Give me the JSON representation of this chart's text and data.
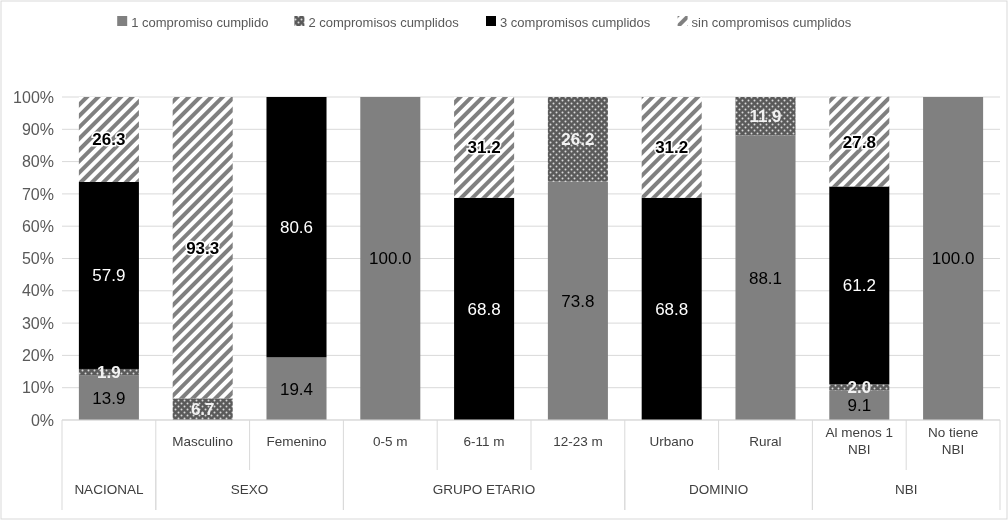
{
  "chart_data": {
    "type": "bar",
    "stacked": true,
    "categories": [
      null,
      "Masculino",
      "Femenino",
      "0-5 m",
      "6-11 m",
      "12-23 m",
      "Urbano",
      "Rural",
      "Al menos 1 NBI",
      "No tiene NBI"
    ],
    "annotations": [
      "NACIONAL",
      "SEXO",
      "GRUPO ETARIO",
      "DOMINIO",
      "NBI"
    ],
    "series": [
      {
        "name": "1 compromiso cumplido",
        "color": "#808080",
        "values": [
          13.9,
          0,
          19.4,
          100,
          0,
          73.8,
          0,
          88.1,
          9.1,
          100
        ],
        "value_labels": [
          "13.9",
          null,
          "19.4",
          "100.0",
          null,
          "73.8",
          null,
          "88.1",
          "9.1",
          "100.0"
        ]
      },
      {
        "name": "2 compromisos cumplidos",
        "color": "#5a5a5a",
        "values": [
          1.9,
          6.7,
          0,
          0,
          0,
          26.2,
          0,
          11.9,
          2.0,
          0
        ],
        "value_labels": [
          "1.9",
          "6.7",
          null,
          null,
          null,
          "26.2",
          null,
          "11.9",
          "2.0",
          null
        ]
      },
      {
        "name": "3 compromisos cumplidos",
        "color": "#000000",
        "values": [
          57.9,
          0,
          80.6,
          0,
          68.8,
          0,
          68.8,
          0,
          61.2,
          0
        ],
        "value_labels": [
          "57.9",
          null,
          "80.6",
          null,
          "68.8",
          null,
          "68.8",
          null,
          "61.2",
          null
        ]
      },
      {
        "name": "sin  compromisos cumplidos",
        "color": "#808080",
        "values": [
          26.3,
          93.3,
          0,
          0,
          31.2,
          0,
          31.2,
          0,
          27.8,
          0
        ],
        "value_labels": [
          "26.3",
          "93.3",
          null,
          null,
          "31.2",
          null,
          "31.2",
          null,
          "27.8",
          null
        ]
      }
    ],
    "ylim": [
      0,
      100
    ],
    "yticks": [
      {
        "value": 0,
        "label": "0%"
      },
      {
        "value": 10,
        "label": "10%"
      },
      {
        "value": 20,
        "label": "20%"
      },
      {
        "value": 30,
        "label": "30%"
      },
      {
        "value": 40,
        "label": "40%"
      },
      {
        "value": 50,
        "label": "50%"
      },
      {
        "value": 60,
        "label": "60%"
      },
      {
        "value": 70,
        "label": "70%"
      },
      {
        "value": 80,
        "label": "80%"
      },
      {
        "value": 90,
        "label": "90%"
      },
      {
        "value": 100,
        "label": "100%"
      }
    ],
    "grid": "y",
    "legend": "top"
  }
}
